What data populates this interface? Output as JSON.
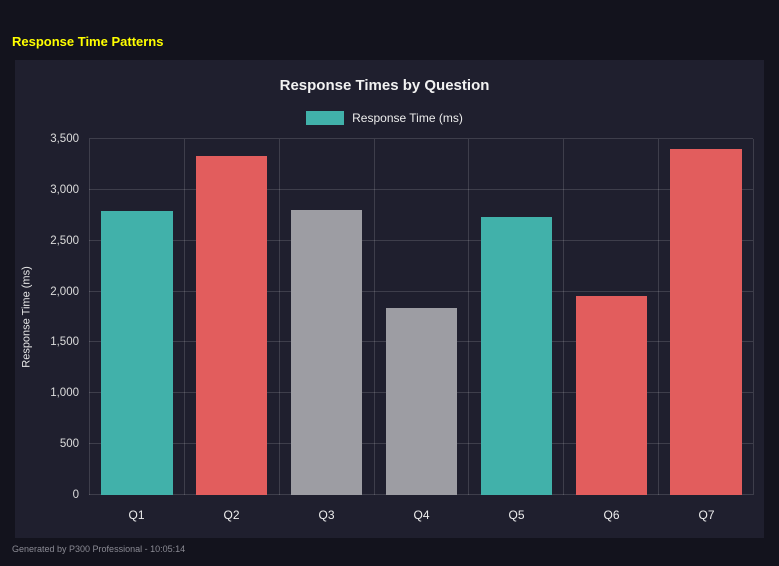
{
  "header": {
    "title": "Response Time Patterns",
    "color": "#ffff00"
  },
  "footer": {
    "text": "Generated by P300 Professional - 10:05:14"
  },
  "chart_data": {
    "type": "bar",
    "title": "Response Times by Question",
    "legend": [
      {
        "label": "Response Time (ms)",
        "color": "#41b1aa"
      }
    ],
    "legend_position": "top",
    "categories": [
      "Q1",
      "Q2",
      "Q3",
      "Q4",
      "Q5",
      "Q6",
      "Q7"
    ],
    "values": [
      2790,
      3330,
      2800,
      1840,
      2730,
      1960,
      3400
    ],
    "bar_colors": [
      "#41b1aa",
      "#e25d5d",
      "#9d9da3",
      "#9d9da3",
      "#41b1aa",
      "#e25d5d",
      "#e25d5d"
    ],
    "xlabel": "",
    "ylabel": "Response Time (ms)",
    "ylim": [
      0,
      3500
    ],
    "ytick_step": 500,
    "grid": true,
    "background": {
      "page": "#13131d",
      "card": "#1f1f2e",
      "gridline": "rgba(255,255,255,0.14)"
    }
  }
}
